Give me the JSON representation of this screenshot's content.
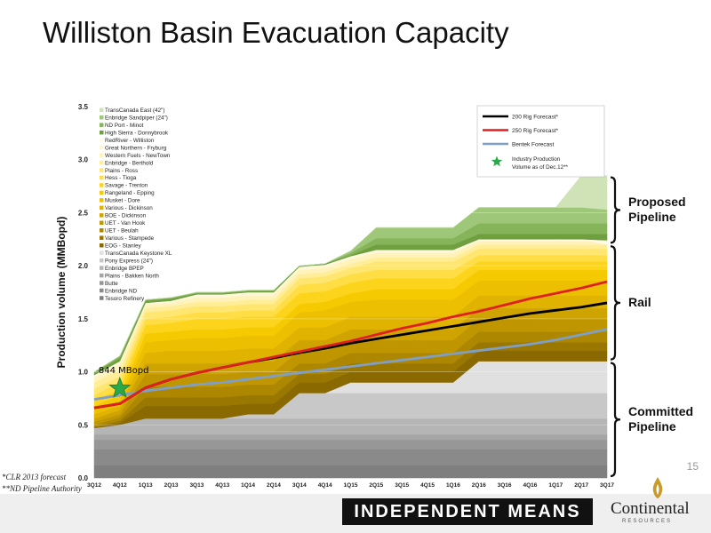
{
  "slide": {
    "title": "Williston Basin Evacuation Capacity",
    "page_number": "15",
    "footnotes": [
      "*CLR 2013 forecast",
      "**ND Pipeline Authority"
    ],
    "footer_tagline": "INDEPENDENT MEANS",
    "logo_name": "Continental",
    "logo_sub": "RESOURCES"
  },
  "brackets": [
    {
      "label": "Proposed\nPipeline",
      "from": 2.2,
      "to": 2.85
    },
    {
      "label": "Rail",
      "from": 1.1,
      "to": 2.2
    },
    {
      "label": "Committed\nPipeline",
      "from": 0.0,
      "to": 1.1
    }
  ],
  "chart_data": {
    "type": "area",
    "ylabel": "Production volume (MMBopd)",
    "xlabel": "",
    "ylim": [
      0,
      3.5
    ],
    "yticks": [
      "0.0",
      "0.5",
      "1.0",
      "1.5",
      "2.0",
      "2.5",
      "3.0",
      "3.5"
    ],
    "categories": [
      "3Q12",
      "4Q12",
      "1Q13",
      "2Q13",
      "3Q13",
      "4Q13",
      "1Q14",
      "2Q14",
      "3Q14",
      "4Q14",
      "1Q15",
      "2Q15",
      "3Q15",
      "4Q15",
      "1Q16",
      "2Q16",
      "3Q16",
      "4Q16",
      "1Q17",
      "2Q17",
      "3Q17"
    ],
    "capacity_layers": [
      {
        "name": "Tesoro Refinery",
        "color": "#7f7f7f",
        "top": [
          0.12,
          0.12,
          0.12,
          0.12,
          0.12,
          0.12,
          0.12,
          0.12,
          0.12,
          0.12,
          0.12,
          0.12,
          0.12,
          0.12,
          0.12,
          0.12,
          0.12,
          0.12,
          0.12,
          0.12,
          0.12
        ]
      },
      {
        "name": "Enbridge ND",
        "color": "#8a8a8a",
        "top": [
          0.27,
          0.27,
          0.27,
          0.27,
          0.27,
          0.27,
          0.27,
          0.27,
          0.27,
          0.27,
          0.27,
          0.27,
          0.27,
          0.27,
          0.27,
          0.27,
          0.27,
          0.27,
          0.27,
          0.27,
          0.27
        ]
      },
      {
        "name": "Butte",
        "color": "#979797",
        "top": [
          0.36,
          0.36,
          0.36,
          0.36,
          0.36,
          0.36,
          0.36,
          0.36,
          0.36,
          0.36,
          0.36,
          0.36,
          0.36,
          0.36,
          0.36,
          0.36,
          0.36,
          0.36,
          0.36,
          0.36,
          0.36
        ]
      },
      {
        "name": "Plains - Bakken North",
        "color": "#a6a6a6",
        "top": [
          0.41,
          0.41,
          0.41,
          0.41,
          0.41,
          0.41,
          0.41,
          0.41,
          0.41,
          0.41,
          0.41,
          0.41,
          0.41,
          0.41,
          0.41,
          0.41,
          0.41,
          0.41,
          0.41,
          0.41,
          0.41
        ]
      },
      {
        "name": "Enbridge BPEP",
        "color": "#b5b5b5",
        "top": [
          0.47,
          0.5,
          0.56,
          0.56,
          0.56,
          0.56,
          0.56,
          0.56,
          0.56,
          0.56,
          0.56,
          0.56,
          0.56,
          0.56,
          0.56,
          0.56,
          0.56,
          0.56,
          0.56,
          0.56,
          0.56
        ]
      },
      {
        "name": "Pony Express (24\")",
        "color": "#c8c8c8",
        "top": [
          0.47,
          0.5,
          0.56,
          0.56,
          0.56,
          0.56,
          0.6,
          0.6,
          0.8,
          0.8,
          0.8,
          0.8,
          0.8,
          0.8,
          0.8,
          0.8,
          0.8,
          0.8,
          0.8,
          0.8,
          0.8
        ]
      },
      {
        "name": "TransCanada Keystone XL",
        "color": "#e0e0e0",
        "top": [
          0.47,
          0.5,
          0.56,
          0.56,
          0.56,
          0.56,
          0.6,
          0.6,
          0.8,
          0.8,
          0.9,
          0.9,
          0.9,
          0.9,
          0.9,
          1.1,
          1.1,
          1.1,
          1.1,
          1.1,
          1.1
        ]
      },
      {
        "name": "EOG - Stanley",
        "color": "#8a6a00",
        "top": [
          0.47,
          0.52,
          0.68,
          0.68,
          0.68,
          0.68,
          0.7,
          0.7,
          0.9,
          0.9,
          1.0,
          1.0,
          1.0,
          1.0,
          1.0,
          1.2,
          1.2,
          1.2,
          1.2,
          1.2,
          1.2
        ]
      },
      {
        "name": "Various - Stampede",
        "color": "#9a7800",
        "top": [
          0.48,
          0.54,
          0.76,
          0.76,
          0.76,
          0.76,
          0.78,
          0.78,
          0.98,
          0.98,
          1.08,
          1.08,
          1.08,
          1.08,
          1.08,
          1.28,
          1.28,
          1.28,
          1.28,
          1.28,
          1.28
        ]
      },
      {
        "name": "UET - Beulah",
        "color": "#ad8700",
        "top": [
          0.5,
          0.57,
          0.86,
          0.86,
          0.86,
          0.86,
          0.88,
          0.88,
          1.08,
          1.08,
          1.18,
          1.18,
          1.18,
          1.18,
          1.18,
          1.38,
          1.38,
          1.38,
          1.38,
          1.38,
          1.38
        ]
      },
      {
        "name": "UET - Van Hook",
        "color": "#c09600",
        "top": [
          0.53,
          0.6,
          0.98,
          0.98,
          0.98,
          0.98,
          1.0,
          1.0,
          1.2,
          1.2,
          1.3,
          1.3,
          1.3,
          1.3,
          1.3,
          1.5,
          1.5,
          1.5,
          1.5,
          1.5,
          1.5
        ]
      },
      {
        "name": "BOE - Dickinson",
        "color": "#d0a400",
        "top": [
          0.56,
          0.64,
          1.08,
          1.08,
          1.08,
          1.08,
          1.1,
          1.1,
          1.3,
          1.3,
          1.4,
          1.4,
          1.4,
          1.4,
          1.4,
          1.6,
          1.6,
          1.6,
          1.6,
          1.6,
          1.6
        ]
      },
      {
        "name": "Various - Dickinson",
        "color": "#dfb300",
        "top": [
          0.6,
          0.68,
          1.18,
          1.2,
          1.2,
          1.2,
          1.22,
          1.22,
          1.42,
          1.42,
          1.52,
          1.52,
          1.52,
          1.52,
          1.52,
          1.72,
          1.72,
          1.72,
          1.72,
          1.72,
          1.72
        ]
      },
      {
        "name": "Musket - Dore",
        "color": "#ecc000",
        "top": [
          0.64,
          0.73,
          1.28,
          1.3,
          1.32,
          1.32,
          1.34,
          1.34,
          1.56,
          1.58,
          1.66,
          1.68,
          1.68,
          1.68,
          1.68,
          1.86,
          1.86,
          1.86,
          1.86,
          1.86,
          1.86
        ]
      },
      {
        "name": "Rangeland - Epping",
        "color": "#f5ca00",
        "top": [
          0.68,
          0.78,
          1.36,
          1.38,
          1.4,
          1.4,
          1.42,
          1.42,
          1.64,
          1.66,
          1.74,
          1.78,
          1.78,
          1.78,
          1.78,
          1.96,
          1.96,
          1.96,
          1.96,
          1.96,
          1.96
        ]
      },
      {
        "name": "Savage - Trenton",
        "color": "#fcd41c",
        "top": [
          0.73,
          0.84,
          1.44,
          1.46,
          1.5,
          1.5,
          1.52,
          1.52,
          1.74,
          1.76,
          1.84,
          1.88,
          1.88,
          1.88,
          1.88,
          2.04,
          2.04,
          2.04,
          2.04,
          2.04,
          2.04
        ]
      },
      {
        "name": "Hess - Tioga",
        "color": "#ffdd44",
        "top": [
          0.78,
          0.9,
          1.5,
          1.52,
          1.56,
          1.56,
          1.58,
          1.58,
          1.82,
          1.84,
          1.92,
          1.96,
          1.96,
          1.96,
          1.96,
          2.1,
          2.1,
          2.1,
          2.1,
          2.1,
          2.1
        ]
      },
      {
        "name": "Plains - Ross",
        "color": "#ffe670",
        "top": [
          0.84,
          0.96,
          1.56,
          1.58,
          1.62,
          1.62,
          1.64,
          1.64,
          1.88,
          1.9,
          1.98,
          2.04,
          2.04,
          2.04,
          2.04,
          2.16,
          2.16,
          2.16,
          2.16,
          2.16,
          2.16
        ]
      },
      {
        "name": "Enbridge - Berthold",
        "color": "#ffed98",
        "top": [
          0.9,
          1.02,
          1.6,
          1.62,
          1.66,
          1.66,
          1.68,
          1.68,
          1.92,
          1.94,
          2.02,
          2.08,
          2.08,
          2.08,
          2.08,
          2.2,
          2.2,
          2.2,
          2.2,
          2.2,
          2.2
        ]
      },
      {
        "name": "Western Fuels - NewTown",
        "color": "#fff3bb",
        "top": [
          0.94,
          1.07,
          1.63,
          1.65,
          1.7,
          1.7,
          1.72,
          1.72,
          1.96,
          1.98,
          2.06,
          2.12,
          2.12,
          2.12,
          2.12,
          2.23,
          2.23,
          2.23,
          2.23,
          2.23,
          2.23
        ]
      },
      {
        "name": "Great Northern - Fryburg",
        "color": "#fff7d2",
        "top": [
          0.96,
          1.09,
          1.64,
          1.66,
          1.72,
          1.72,
          1.74,
          1.74,
          1.98,
          2.0,
          2.08,
          2.14,
          2.14,
          2.14,
          2.14,
          2.24,
          2.24,
          2.24,
          2.24,
          2.24,
          2.24
        ]
      },
      {
        "name": "RedRiver - Williston",
        "color": "#fffbe6",
        "top": [
          0.97,
          1.1,
          1.65,
          1.67,
          1.73,
          1.73,
          1.75,
          1.75,
          1.99,
          2.01,
          2.09,
          2.15,
          2.15,
          2.15,
          2.15,
          2.25,
          2.25,
          2.25,
          2.25,
          2.25,
          2.2
        ]
      },
      {
        "name": "High Sierra - Donnybrook",
        "color": "#6f9f3f",
        "top": [
          0.99,
          1.13,
          1.67,
          1.69,
          1.74,
          1.74,
          1.76,
          1.76,
          2.0,
          2.02,
          2.1,
          2.2,
          2.2,
          2.2,
          2.2,
          2.3,
          2.3,
          2.3,
          2.3,
          2.3,
          2.3
        ]
      },
      {
        "name": "ND Port - Minot",
        "color": "#85b45a",
        "top": [
          1.0,
          1.15,
          1.68,
          1.7,
          1.75,
          1.75,
          1.77,
          1.77,
          2.0,
          2.02,
          2.12,
          2.26,
          2.26,
          2.26,
          2.26,
          2.4,
          2.4,
          2.4,
          2.4,
          2.4,
          2.4
        ]
      },
      {
        "name": "Enbridge Sandpiper (24\")",
        "color": "#9fc779",
        "top": [
          1.0,
          1.15,
          1.68,
          1.7,
          1.75,
          1.75,
          1.77,
          1.77,
          2.0,
          2.02,
          2.14,
          2.36,
          2.36,
          2.36,
          2.36,
          2.55,
          2.55,
          2.55,
          2.55,
          2.55,
          2.53
        ]
      },
      {
        "name": "TransCanada East (42\")",
        "color": "#cfe3b7",
        "top": [
          1.0,
          1.15,
          1.68,
          1.7,
          1.75,
          1.75,
          1.77,
          1.77,
          2.0,
          2.02,
          2.14,
          2.36,
          2.36,
          2.36,
          2.36,
          2.55,
          2.55,
          2.55,
          2.55,
          2.85,
          2.85
        ]
      }
    ],
    "series": [
      {
        "name": "200 Rig Forecast*",
        "color": "#000000",
        "values": [
          0.66,
          0.7,
          0.85,
          0.93,
          0.99,
          1.04,
          1.09,
          1.13,
          1.18,
          1.22,
          1.27,
          1.31,
          1.35,
          1.39,
          1.43,
          1.47,
          1.51,
          1.55,
          1.58,
          1.61,
          1.65
        ]
      },
      {
        "name": "250 Rig Forecast*",
        "color": "#e02020",
        "values": [
          0.66,
          0.7,
          0.85,
          0.93,
          0.99,
          1.04,
          1.09,
          1.14,
          1.19,
          1.24,
          1.29,
          1.35,
          1.41,
          1.46,
          1.52,
          1.57,
          1.63,
          1.69,
          1.74,
          1.79,
          1.85
        ]
      },
      {
        "name": "Bentek Forecast",
        "color": "#7f9fc8",
        "values": [
          0.74,
          0.78,
          0.82,
          0.85,
          0.88,
          0.9,
          0.93,
          0.96,
          0.99,
          1.02,
          1.05,
          1.08,
          1.11,
          1.14,
          1.17,
          1.2,
          1.23,
          1.26,
          1.3,
          1.35,
          1.4
        ]
      }
    ],
    "markers": [
      {
        "name": "Industry Production Volume as of  Dec.12**",
        "x": "4Q12",
        "y": 0.844,
        "label": "844 MBopd",
        "color": "#2aa84a"
      }
    ]
  }
}
